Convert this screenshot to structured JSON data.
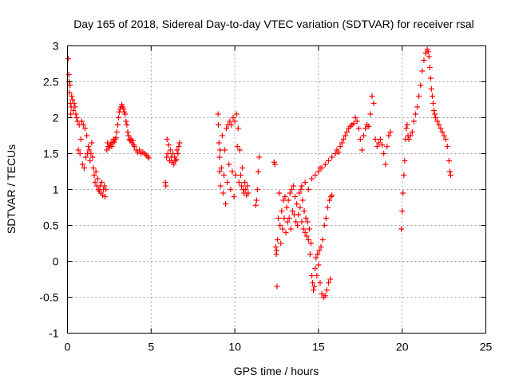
{
  "chart_data": {
    "type": "scatter",
    "title": "Day 165 of 2018, Sidereal Day-to-day VTEC variation (SDTVAR) for receiver rsal",
    "xlabel": "GPS time / hours",
    "ylabel": "SDTVAR / TECUs",
    "xlim": [
      0,
      25
    ],
    "ylim": [
      -1,
      3
    ],
    "xticks": [
      "0",
      "5",
      "10",
      "15",
      "20",
      "25"
    ],
    "yticks": [
      "-1",
      "-0.5",
      "0",
      "0.5",
      "1",
      "1.5",
      "2",
      "2.5",
      "3"
    ],
    "xtick_values": [
      0,
      5,
      10,
      15,
      20,
      25
    ],
    "ytick_values": [
      -1,
      -0.5,
      0,
      0.5,
      1,
      1.5,
      2,
      2.5,
      3
    ],
    "grid": true,
    "marker": "plus",
    "color": "#ff0000",
    "series": [
      {
        "name": "SDTVAR",
        "points": [
          [
            0.05,
            2.82
          ],
          [
            0.08,
            2.6
          ],
          [
            0.1,
            2.5
          ],
          [
            0.12,
            2.35
          ],
          [
            0.15,
            2.45
          ],
          [
            0.18,
            2.2
          ],
          [
            0.2,
            2.05
          ],
          [
            0.22,
            2.15
          ],
          [
            0.25,
            2.3
          ],
          [
            0.3,
            2.25
          ],
          [
            0.35,
            2.1
          ],
          [
            0.4,
            2.2
          ],
          [
            0.45,
            2.15
          ],
          [
            0.5,
            2.05
          ],
          [
            0.55,
            2.0
          ],
          [
            0.6,
            1.95
          ],
          [
            0.65,
            1.55
          ],
          [
            0.7,
            1.9
          ],
          [
            0.75,
            1.5
          ],
          [
            0.8,
            1.7
          ],
          [
            0.85,
            1.95
          ],
          [
            0.9,
            1.35
          ],
          [
            0.95,
            1.9
          ],
          [
            1.0,
            1.3
          ],
          [
            1.05,
            1.85
          ],
          [
            1.1,
            1.45
          ],
          [
            1.15,
            1.75
          ],
          [
            1.2,
            1.5
          ],
          [
            1.25,
            1.6
          ],
          [
            1.3,
            1.55
          ],
          [
            1.35,
            1.4
          ],
          [
            1.4,
            1.5
          ],
          [
            1.45,
            1.65
          ],
          [
            1.5,
            1.45
          ],
          [
            1.55,
            1.3
          ],
          [
            1.6,
            1.2
          ],
          [
            1.65,
            1.1
          ],
          [
            1.7,
            1.25
          ],
          [
            1.75,
            1.05
          ],
          [
            1.8,
            1.15
          ],
          [
            1.85,
            1.0
          ],
          [
            1.9,
            0.98
          ],
          [
            1.95,
            1.05
          ],
          [
            2.0,
            0.95
          ],
          [
            2.05,
            1.1
          ],
          [
            2.1,
            0.92
          ],
          [
            2.15,
            1.0
          ],
          [
            2.2,
            1.05
          ],
          [
            2.25,
            0.9
          ],
          [
            2.3,
            1.0
          ],
          [
            2.35,
            1.55
          ],
          [
            2.4,
            1.65
          ],
          [
            2.45,
            1.6
          ],
          [
            2.5,
            1.58
          ],
          [
            2.55,
            1.62
          ],
          [
            2.6,
            1.65
          ],
          [
            2.65,
            1.6
          ],
          [
            2.7,
            1.65
          ],
          [
            2.75,
            1.7
          ],
          [
            2.8,
            1.66
          ],
          [
            2.85,
            1.7
          ],
          [
            2.9,
            1.72
          ],
          [
            2.95,
            1.8
          ],
          [
            3.0,
            1.9
          ],
          [
            3.05,
            2.0
          ],
          [
            3.1,
            2.08
          ],
          [
            3.15,
            2.12
          ],
          [
            3.2,
            2.15
          ],
          [
            3.25,
            2.18
          ],
          [
            3.3,
            2.15
          ],
          [
            3.35,
            2.12
          ],
          [
            3.4,
            2.08
          ],
          [
            3.45,
            2.05
          ],
          [
            3.5,
            1.95
          ],
          [
            3.55,
            1.9
          ],
          [
            3.6,
            1.8
          ],
          [
            3.65,
            1.75
          ],
          [
            3.7,
            1.7
          ],
          [
            3.75,
            1.68
          ],
          [
            3.8,
            1.7
          ],
          [
            3.85,
            1.65
          ],
          [
            3.9,
            1.68
          ],
          [
            3.95,
            1.62
          ],
          [
            4.0,
            1.6
          ],
          [
            4.1,
            1.55
          ],
          [
            4.2,
            1.52
          ],
          [
            4.3,
            1.55
          ],
          [
            4.4,
            1.5
          ],
          [
            4.5,
            1.52
          ],
          [
            4.6,
            1.5
          ],
          [
            4.7,
            1.48
          ],
          [
            4.8,
            1.46
          ],
          [
            4.85,
            1.44
          ],
          [
            5.85,
            1.1
          ],
          [
            5.88,
            1.05
          ],
          [
            5.92,
            1.45
          ],
          [
            5.95,
            1.7
          ],
          [
            6.0,
            1.5
          ],
          [
            6.05,
            1.62
          ],
          [
            6.1,
            1.4
          ],
          [
            6.15,
            1.55
          ],
          [
            6.2,
            1.45
          ],
          [
            6.25,
            1.38
          ],
          [
            6.3,
            1.5
          ],
          [
            6.35,
            1.35
          ],
          [
            6.4,
            1.45
          ],
          [
            6.45,
            1.4
          ],
          [
            6.5,
            1.42
          ],
          [
            6.55,
            1.55
          ],
          [
            6.6,
            1.5
          ],
          [
            6.65,
            1.6
          ],
          [
            6.7,
            1.65
          ],
          [
            9.0,
            2.05
          ],
          [
            9.02,
            1.9
          ],
          [
            9.05,
            1.65
          ],
          [
            9.08,
            1.45
          ],
          [
            9.1,
            1.25
          ],
          [
            9.12,
            1.55
          ],
          [
            9.15,
            1.05
          ],
          [
            9.2,
            1.3
          ],
          [
            9.25,
            1.75
          ],
          [
            9.3,
            0.95
          ],
          [
            9.35,
            1.2
          ],
          [
            9.4,
            1.55
          ],
          [
            9.45,
            0.8
          ],
          [
            9.5,
            1.85
          ],
          [
            9.55,
            1.1
          ],
          [
            9.6,
            1.9
          ],
          [
            9.65,
            1.35
          ],
          [
            9.7,
            1.95
          ],
          [
            9.75,
            1.0
          ],
          [
            9.8,
            1.9
          ],
          [
            9.85,
            1.25
          ],
          [
            9.9,
            2.0
          ],
          [
            9.95,
            0.9
          ],
          [
            10.0,
            1.95
          ],
          [
            10.05,
            1.2
          ],
          [
            10.1,
            2.05
          ],
          [
            10.15,
            1.6
          ],
          [
            10.2,
            1.85
          ],
          [
            10.25,
            1.1
          ],
          [
            10.3,
            1.55
          ],
          [
            10.35,
            1.2
          ],
          [
            10.4,
            1.05
          ],
          [
            10.45,
            1.3
          ],
          [
            10.5,
            1.0
          ],
          [
            10.55,
            0.95
          ],
          [
            10.6,
            1.1
          ],
          [
            10.65,
            1.0
          ],
          [
            10.7,
            0.92
          ],
          [
            10.75,
            1.05
          ],
          [
            10.8,
            0.95
          ],
          [
            11.25,
            0.78
          ],
          [
            11.3,
            0.85
          ],
          [
            11.35,
            1.0
          ],
          [
            11.4,
            1.25
          ],
          [
            11.45,
            1.45
          ],
          [
            12.35,
            1.38
          ],
          [
            12.4,
            1.35
          ],
          [
            12.45,
            0.2
          ],
          [
            12.48,
            0.1
          ],
          [
            12.5,
            0.15
          ],
          [
            12.52,
            -0.35
          ],
          [
            12.55,
            0.3
          ],
          [
            12.6,
            0.6
          ],
          [
            12.65,
            0.95
          ],
          [
            12.7,
            0.5
          ],
          [
            12.75,
            0.25
          ],
          [
            12.8,
            0.7
          ],
          [
            12.85,
            0.45
          ],
          [
            12.9,
            0.85
          ],
          [
            12.95,
            0.6
          ],
          [
            13.0,
            0.9
          ],
          [
            13.05,
            0.4
          ],
          [
            13.1,
            0.75
          ],
          [
            13.15,
            0.55
          ],
          [
            13.2,
            0.85
          ],
          [
            13.25,
            0.6
          ],
          [
            13.3,
            0.95
          ],
          [
            13.35,
            0.45
          ],
          [
            13.4,
            1.0
          ],
          [
            13.45,
            0.7
          ],
          [
            13.5,
            1.05
          ],
          [
            13.55,
            0.65
          ],
          [
            13.6,
            0.9
          ],
          [
            13.65,
            0.55
          ],
          [
            13.7,
            0.8
          ],
          [
            13.75,
            0.5
          ],
          [
            13.8,
            0.65
          ],
          [
            13.85,
            0.95
          ],
          [
            13.9,
            0.75
          ],
          [
            13.95,
            1.0
          ],
          [
            14.0,
            0.55
          ],
          [
            14.05,
            0.85
          ],
          [
            14.1,
            0.45
          ],
          [
            14.15,
            0.7
          ],
          [
            14.2,
            0.4
          ],
          [
            14.25,
            0.6
          ],
          [
            14.3,
            0.35
          ],
          [
            14.35,
            0.55
          ],
          [
            14.4,
            0.3
          ],
          [
            14.45,
            0.45
          ],
          [
            14.5,
            0.1
          ],
          [
            14.55,
            0.25
          ],
          [
            14.6,
            -0.2
          ],
          [
            14.65,
            -0.3
          ],
          [
            14.7,
            -0.4
          ],
          [
            14.75,
            -0.35
          ],
          [
            14.8,
            -0.1
          ],
          [
            14.85,
            0.05
          ],
          [
            14.9,
            -0.2
          ],
          [
            14.95,
            0.1
          ],
          [
            15.0,
            -0.05
          ],
          [
            15.05,
            0.15
          ],
          [
            15.1,
            -0.3
          ],
          [
            15.15,
            0.2
          ],
          [
            15.2,
            -0.45
          ],
          [
            15.25,
            0.3
          ],
          [
            15.3,
            -0.5
          ],
          [
            15.35,
            0.5
          ],
          [
            15.4,
            -0.48
          ],
          [
            15.45,
            0.6
          ],
          [
            15.5,
            -0.4
          ],
          [
            15.55,
            0.75
          ],
          [
            15.6,
            -0.3
          ],
          [
            15.65,
            0.85
          ],
          [
            15.7,
            -0.25
          ],
          [
            15.75,
            0.9
          ],
          [
            15.8,
            0.92
          ],
          [
            14.0,
            1.05
          ],
          [
            14.2,
            1.1
          ],
          [
            14.4,
            1.0
          ],
          [
            14.6,
            1.15
          ],
          [
            14.8,
            1.2
          ],
          [
            15.0,
            1.25
          ],
          [
            15.1,
            1.3
          ],
          [
            15.2,
            1.3
          ],
          [
            15.4,
            1.35
          ],
          [
            15.6,
            1.4
          ],
          [
            15.8,
            1.45
          ],
          [
            16.0,
            1.5
          ],
          [
            16.1,
            1.55
          ],
          [
            16.2,
            1.52
          ],
          [
            16.3,
            1.6
          ],
          [
            16.4,
            1.65
          ],
          [
            16.5,
            1.7
          ],
          [
            16.6,
            1.75
          ],
          [
            16.7,
            1.8
          ],
          [
            16.8,
            1.85
          ],
          [
            16.9,
            1.88
          ],
          [
            17.0,
            1.9
          ],
          [
            17.1,
            1.92
          ],
          [
            17.2,
            2.0
          ],
          [
            17.3,
            1.95
          ],
          [
            17.4,
            1.85
          ],
          [
            17.5,
            1.7
          ],
          [
            17.6,
            1.55
          ],
          [
            17.7,
            1.75
          ],
          [
            17.8,
            1.85
          ],
          [
            17.9,
            1.9
          ],
          [
            18.0,
            1.88
          ],
          [
            18.1,
            2.05
          ],
          [
            18.2,
            2.3
          ],
          [
            18.3,
            2.2
          ],
          [
            18.4,
            1.7
          ],
          [
            18.5,
            1.6
          ],
          [
            18.6,
            1.65
          ],
          [
            18.7,
            1.7
          ],
          [
            18.8,
            1.62
          ],
          [
            18.9,
            1.5
          ],
          [
            19.0,
            1.35
          ],
          [
            19.1,
            1.6
          ],
          [
            19.2,
            1.75
          ],
          [
            19.3,
            1.8
          ],
          [
            19.95,
            0.45
          ],
          [
            20.0,
            0.7
          ],
          [
            20.05,
            0.95
          ],
          [
            20.1,
            1.2
          ],
          [
            20.15,
            1.4
          ],
          [
            20.2,
            1.7
          ],
          [
            20.25,
            1.85
          ],
          [
            20.3,
            1.9
          ],
          [
            20.35,
            1.75
          ],
          [
            20.4,
            1.7
          ],
          [
            20.5,
            1.75
          ],
          [
            20.6,
            1.8
          ],
          [
            20.7,
            1.95
          ],
          [
            20.8,
            2.05
          ],
          [
            20.9,
            2.15
          ],
          [
            21.0,
            2.3
          ],
          [
            21.1,
            2.45
          ],
          [
            21.2,
            2.65
          ],
          [
            21.3,
            2.8
          ],
          [
            21.4,
            2.9
          ],
          [
            21.5,
            2.95
          ],
          [
            21.55,
            2.92
          ],
          [
            21.6,
            2.85
          ],
          [
            21.65,
            2.7
          ],
          [
            21.7,
            2.55
          ],
          [
            21.75,
            2.4
          ],
          [
            21.8,
            2.3
          ],
          [
            21.85,
            2.2
          ],
          [
            21.9,
            2.1
          ],
          [
            21.95,
            2.05
          ],
          [
            22.0,
            2.0
          ],
          [
            22.1,
            1.95
          ],
          [
            22.2,
            1.9
          ],
          [
            22.3,
            1.85
          ],
          [
            22.4,
            1.8
          ],
          [
            22.5,
            1.75
          ],
          [
            22.6,
            1.7
          ],
          [
            22.7,
            1.6
          ],
          [
            22.8,
            1.4
          ],
          [
            22.85,
            1.25
          ],
          [
            22.9,
            1.2
          ]
        ]
      }
    ]
  }
}
